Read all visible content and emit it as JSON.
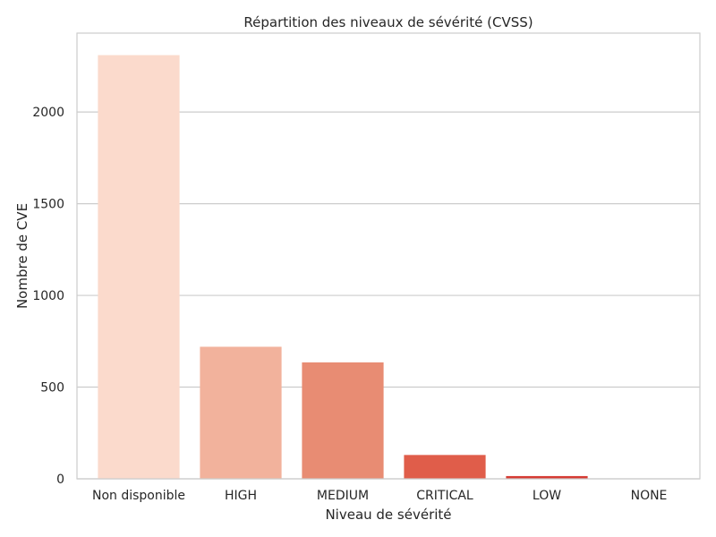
{
  "chart_data": {
    "type": "bar",
    "title": "Répartition des niveaux de sévérité (CVSS)",
    "xlabel": "Niveau de sévérité",
    "ylabel": "Nombre de CVE",
    "categories": [
      "Non disponible",
      "HIGH",
      "MEDIUM",
      "CRITICAL",
      "LOW",
      "NONE"
    ],
    "values": [
      2310,
      720,
      635,
      130,
      15,
      2
    ],
    "colors": [
      "#fbdacc",
      "#f2b29c",
      "#e88c73",
      "#e05d4a",
      "#d63b33",
      "#c61f27"
    ],
    "ylim": [
      0,
      2430
    ],
    "yticks": [
      0,
      500,
      1000,
      1500,
      2000
    ],
    "grid": true,
    "gridlines": "horizontal"
  }
}
